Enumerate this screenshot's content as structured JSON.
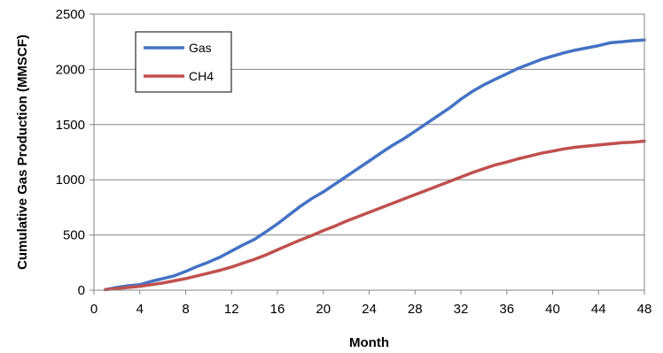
{
  "chart_data": {
    "type": "line",
    "xlabel": "Month",
    "ylabel": "Cumulative Gas Production (MMSCF)",
    "xlim": [
      0,
      48
    ],
    "ylim": [
      0,
      2500
    ],
    "xticks": [
      "0",
      "4",
      "8",
      "12",
      "16",
      "20",
      "24",
      "28",
      "32",
      "36",
      "40",
      "44",
      "48"
    ],
    "yticks": [
      "0",
      "500",
      "1000",
      "1500",
      "2000",
      "2500"
    ],
    "grid": "horizontal",
    "legend_position": "top-left",
    "series": [
      {
        "name": "Gas",
        "color": "#4472C4",
        "x": [
          1,
          2,
          3,
          4,
          5,
          6,
          7,
          8,
          9,
          10,
          11,
          12,
          13,
          14,
          15,
          16,
          17,
          18,
          19,
          20,
          21,
          22,
          23,
          24,
          25,
          26,
          27,
          28,
          29,
          30,
          31,
          32,
          33,
          34,
          35,
          36,
          37,
          38,
          39,
          40,
          41,
          42,
          43,
          44,
          45,
          46,
          47,
          48
        ],
        "values": [
          5,
          25,
          40,
          50,
          80,
          105,
          130,
          170,
          215,
          255,
          300,
          355,
          410,
          460,
          530,
          600,
          680,
          760,
          830,
          890,
          960,
          1030,
          1100,
          1170,
          1240,
          1310,
          1370,
          1440,
          1510,
          1580,
          1650,
          1730,
          1800,
          1860,
          1910,
          1960,
          2010,
          2050,
          2090,
          2120,
          2150,
          2175,
          2195,
          2215,
          2240,
          2250,
          2260,
          2265
        ]
      },
      {
        "name": "CH4",
        "color": "#C0504D",
        "x": [
          1,
          2,
          3,
          4,
          5,
          6,
          7,
          8,
          9,
          10,
          11,
          12,
          13,
          14,
          15,
          16,
          17,
          18,
          19,
          20,
          21,
          22,
          23,
          24,
          25,
          26,
          27,
          28,
          29,
          30,
          31,
          32,
          33,
          34,
          35,
          36,
          37,
          38,
          39,
          40,
          41,
          42,
          43,
          44,
          45,
          46,
          47,
          48
        ],
        "values": [
          5,
          15,
          25,
          35,
          50,
          65,
          85,
          105,
          130,
          155,
          180,
          210,
          245,
          280,
          320,
          365,
          410,
          455,
          495,
          540,
          580,
          625,
          665,
          705,
          745,
          785,
          825,
          865,
          905,
          945,
          985,
          1025,
          1065,
          1100,
          1135,
          1160,
          1190,
          1215,
          1240,
          1260,
          1280,
          1295,
          1305,
          1315,
          1325,
          1335,
          1340,
          1350
        ]
      }
    ]
  }
}
